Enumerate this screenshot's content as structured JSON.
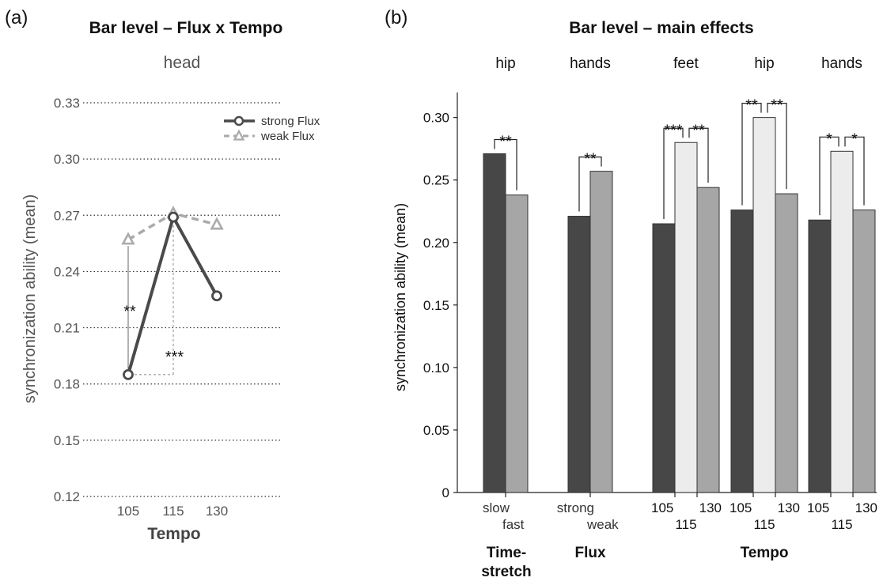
{
  "chart_data": [
    {
      "type": "line",
      "panel_label": "(a)",
      "title": "Bar level – Flux x Tempo",
      "subtitle": "head",
      "xlabel": "Tempo",
      "ylabel": "synchronization ability (mean)",
      "categories": [
        "105",
        "115",
        "130"
      ],
      "yticks": [
        "0.12",
        "0.15",
        "0.18",
        "0.21",
        "0.24",
        "0.27",
        "0.30",
        "0.33"
      ],
      "ylim": [
        0.12,
        0.33
      ],
      "grid": "horizontal dotted",
      "legend": "top-right",
      "series": [
        {
          "name": "strong Flux",
          "values": [
            0.185,
            0.269,
            0.227
          ],
          "color": "#4a4a4a",
          "marker": "circle",
          "style": "solid"
        },
        {
          "name": "weak Flux",
          "values": [
            0.257,
            0.271,
            0.265
          ],
          "color": "#aaaaaa",
          "marker": "triangle",
          "style": "dashed"
        }
      ],
      "annotations": [
        {
          "label": "**",
          "between": "strong Flux 105 vs weak Flux 105"
        },
        {
          "label": "***",
          "between": "strong Flux 105 vs strong Flux 115"
        }
      ]
    },
    {
      "type": "bar",
      "panel_label": "(b)",
      "title": "Bar level – main effects",
      "ylabel": "synchronization ability (mean)",
      "yticks": [
        "0",
        "0.05",
        "0.10",
        "0.15",
        "0.20",
        "0.25",
        "0.30"
      ],
      "ylim": [
        0,
        0.32
      ],
      "groups": [
        {
          "label": "hip",
          "factor": "Time-stretch",
          "bars": [
            {
              "x": "slow",
              "value": 0.271,
              "color": "#474747"
            },
            {
              "x": "fast",
              "value": 0.238,
              "color": "#a6a6a6"
            }
          ],
          "sig": [
            {
              "label": "**",
              "from": 0,
              "to": 1
            }
          ]
        },
        {
          "label": "hands",
          "factor": "Flux",
          "bars": [
            {
              "x": "strong",
              "value": 0.221,
              "color": "#474747"
            },
            {
              "x": "weak",
              "value": 0.257,
              "color": "#a6a6a6"
            }
          ],
          "sig": [
            {
              "label": "**",
              "from": 0,
              "to": 1
            }
          ]
        },
        {
          "label": "feet",
          "factor": "Tempo",
          "bars": [
            {
              "x": "105",
              "value": 0.215,
              "color": "#474747"
            },
            {
              "x": "115",
              "value": 0.28,
              "color": "#ececec"
            },
            {
              "x": "130",
              "value": 0.244,
              "color": "#a6a6a6"
            }
          ],
          "sig": [
            {
              "label": "***",
              "from": 0,
              "to": 1
            },
            {
              "label": "**",
              "from": 1,
              "to": 2
            }
          ]
        },
        {
          "label": "hip",
          "factor": "Tempo",
          "bars": [
            {
              "x": "105",
              "value": 0.226,
              "color": "#474747"
            },
            {
              "x": "115",
              "value": 0.3,
              "color": "#ececec"
            },
            {
              "x": "130",
              "value": 0.239,
              "color": "#a6a6a6"
            }
          ],
          "sig": [
            {
              "label": "**",
              "from": 0,
              "to": 1
            },
            {
              "label": "**",
              "from": 1,
              "to": 2
            }
          ]
        },
        {
          "label": "hands",
          "factor": "Tempo",
          "bars": [
            {
              "x": "105",
              "value": 0.218,
              "color": "#474747"
            },
            {
              "x": "115",
              "value": 0.273,
              "color": "#ececec"
            },
            {
              "x": "130",
              "value": 0.226,
              "color": "#a6a6a6"
            }
          ],
          "sig": [
            {
              "label": "*",
              "from": 0,
              "to": 1
            },
            {
              "label": "*",
              "from": 1,
              "to": 2
            }
          ]
        }
      ],
      "factor_labels": [
        "Time-\nstretch",
        "Flux",
        "Tempo"
      ]
    }
  ]
}
